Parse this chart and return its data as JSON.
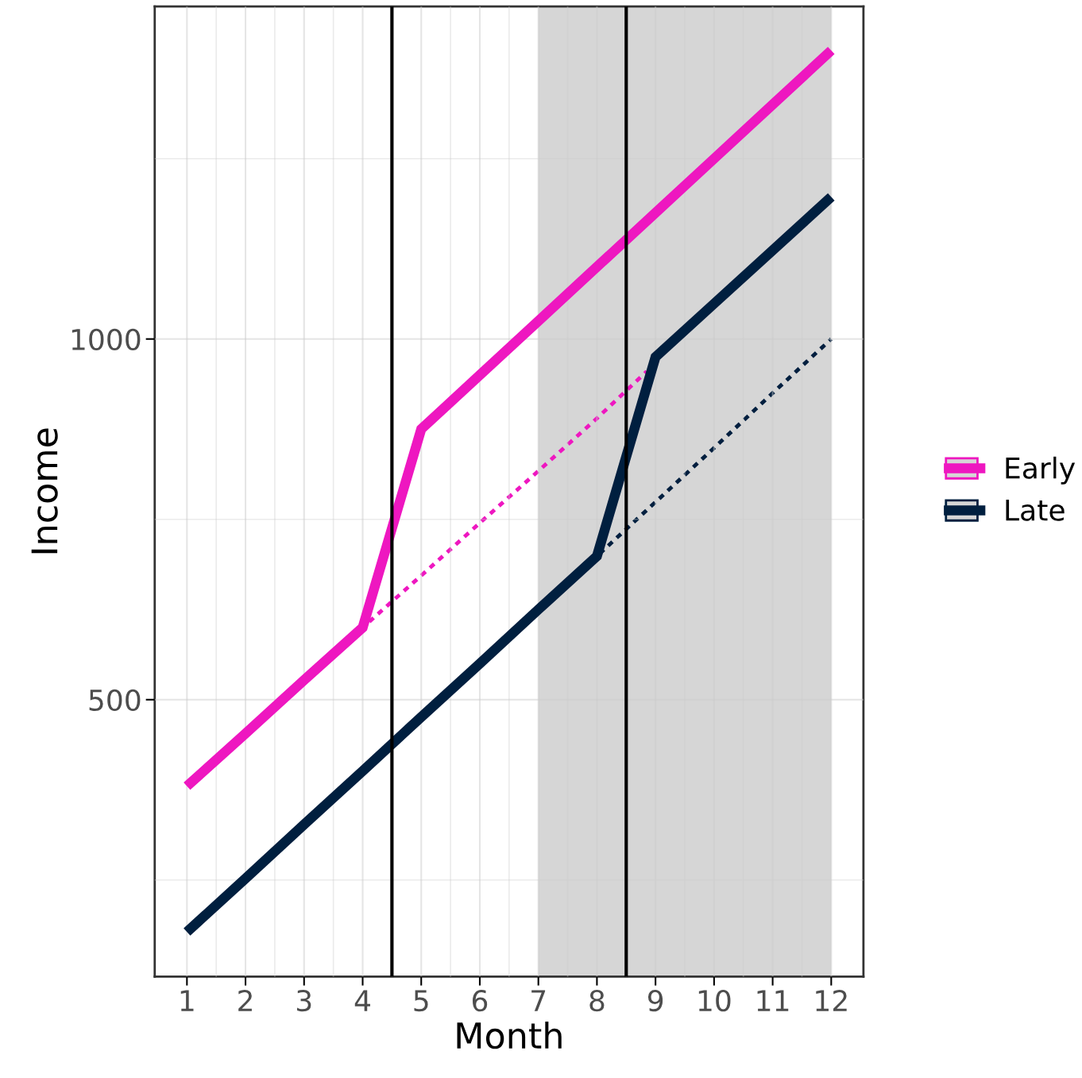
{
  "chart_data": {
    "type": "line",
    "xlabel": "Month",
    "ylabel": "Income",
    "xlim": [
      0.45,
      12.55
    ],
    "xticks": [
      1,
      2,
      3,
      4,
      5,
      6,
      7,
      8,
      9,
      10,
      11,
      12
    ],
    "ylim": [
      116,
      1461
    ],
    "yticks": [
      500,
      1000
    ],
    "grid": true,
    "legend": "right",
    "line_style": "solid",
    "series": [
      {
        "name": "Early",
        "color": "#ee17c0",
        "x": [
          1,
          2,
          3,
          4,
          5,
          6,
          7,
          8,
          9,
          10,
          11,
          12
        ],
        "values": [
          380,
          453,
          527,
          600,
          875,
          950,
          1025,
          1100,
          1175,
          1250,
          1325,
          1400
        ]
      },
      {
        "name": "Late",
        "color": "#001f3f",
        "x": [
          1,
          2,
          3,
          4,
          5,
          6,
          7,
          8,
          9,
          10,
          11,
          12
        ],
        "values": [
          178,
          252,
          327,
          401,
          476,
          550,
          625,
          699,
          975,
          1049,
          1123,
          1197
        ]
      },
      {
        "color": "#ee17c0",
        "line_style": "dotted",
        "x": [
          4,
          5,
          6,
          7,
          8,
          8.85
        ],
        "values": [
          600,
          672,
          745,
          817,
          890,
          955
        ]
      },
      {
        "color": "#001f3f",
        "line_style": "dotted",
        "x": [
          8,
          9,
          10,
          11,
          12
        ],
        "values": [
          699,
          774,
          849,
          925,
          1000
        ]
      }
    ],
    "ref_lines": [
      {
        "axis": "x",
        "value": 4.5,
        "color": "#000000"
      },
      {
        "axis": "x",
        "value": 8.5,
        "color": "#000000"
      }
    ],
    "bands": [
      {
        "axis": "x",
        "from": 7,
        "to": 12,
        "color": "#d6d6d6"
      }
    ]
  }
}
